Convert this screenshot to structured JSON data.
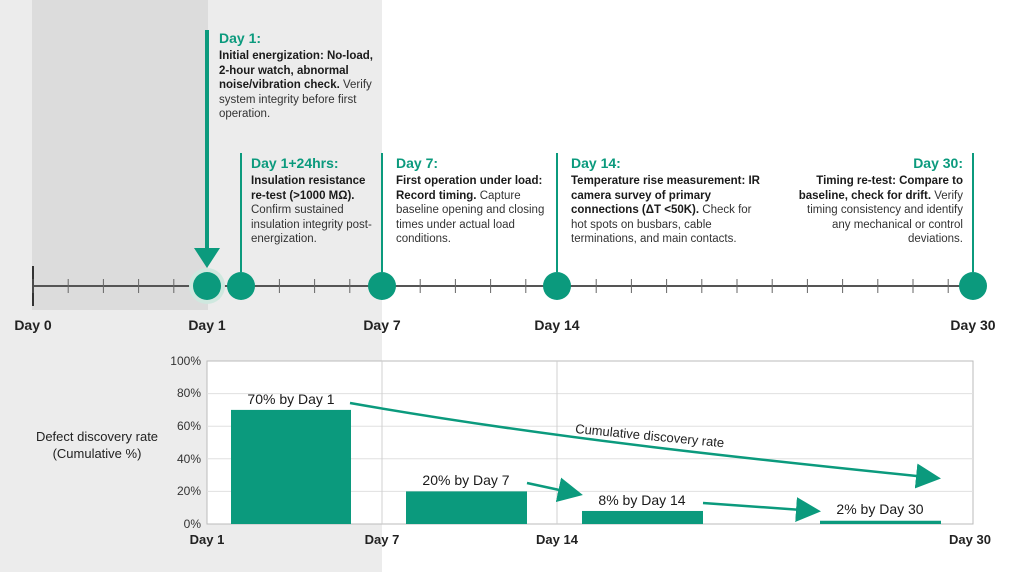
{
  "timeline": {
    "axis_labels": [
      "Day 0",
      "Day 1",
      "Day 7",
      "Day 14",
      "Day 30"
    ],
    "events": [
      {
        "head": "Day 1:",
        "bold": "Initial energization: No-load, 2-hour watch, abnormal noise/vibration check.",
        "text": "Verify system integrity before first operation."
      },
      {
        "head": "Day 1+24hrs:",
        "bold": "Insulation resistance re-test (>1000 MΩ).",
        "text": "Confirm sustained insulation integrity post-energization."
      },
      {
        "head": "Day 7:",
        "bold": "First operation under load: Record timing.",
        "text": "Capture baseline opening and closing times under actual load conditions."
      },
      {
        "head": "Day 14:",
        "bold": "Temperature rise measurement: IR camera survey of primary connections (ΔT <50K).",
        "text": "Check for hot spots on busbars, cable terminations, and main contacts."
      },
      {
        "head": "Day 30:",
        "bold": "Timing re-test: Compare to baseline, check for drift.",
        "text": "Verify timing consistency and identify any mechanical or control deviations."
      }
    ]
  },
  "chart_data": {
    "type": "bar",
    "title": "",
    "ylabel": "Defect discovery rate (Cumulative %)",
    "xlabel": "",
    "ylim": [
      0,
      100
    ],
    "yticks": [
      "0%",
      "20%",
      "40%",
      "60%",
      "80%",
      "100%"
    ],
    "x_ticks": [
      "Day 1",
      "Day 7",
      "Day 14",
      "Day 30"
    ],
    "categories": [
      "Day 1",
      "Day 7",
      "Day 14",
      "Day 30"
    ],
    "values": [
      70,
      20,
      8,
      2
    ],
    "bar_labels": [
      "70% by Day 1",
      "20% by Day 7",
      "8% by Day 14",
      "2% by Day 30"
    ],
    "trend_label": "Cumulative discovery rate"
  },
  "colors": {
    "accent": "#0b9a7d",
    "shade": "#ececec"
  }
}
